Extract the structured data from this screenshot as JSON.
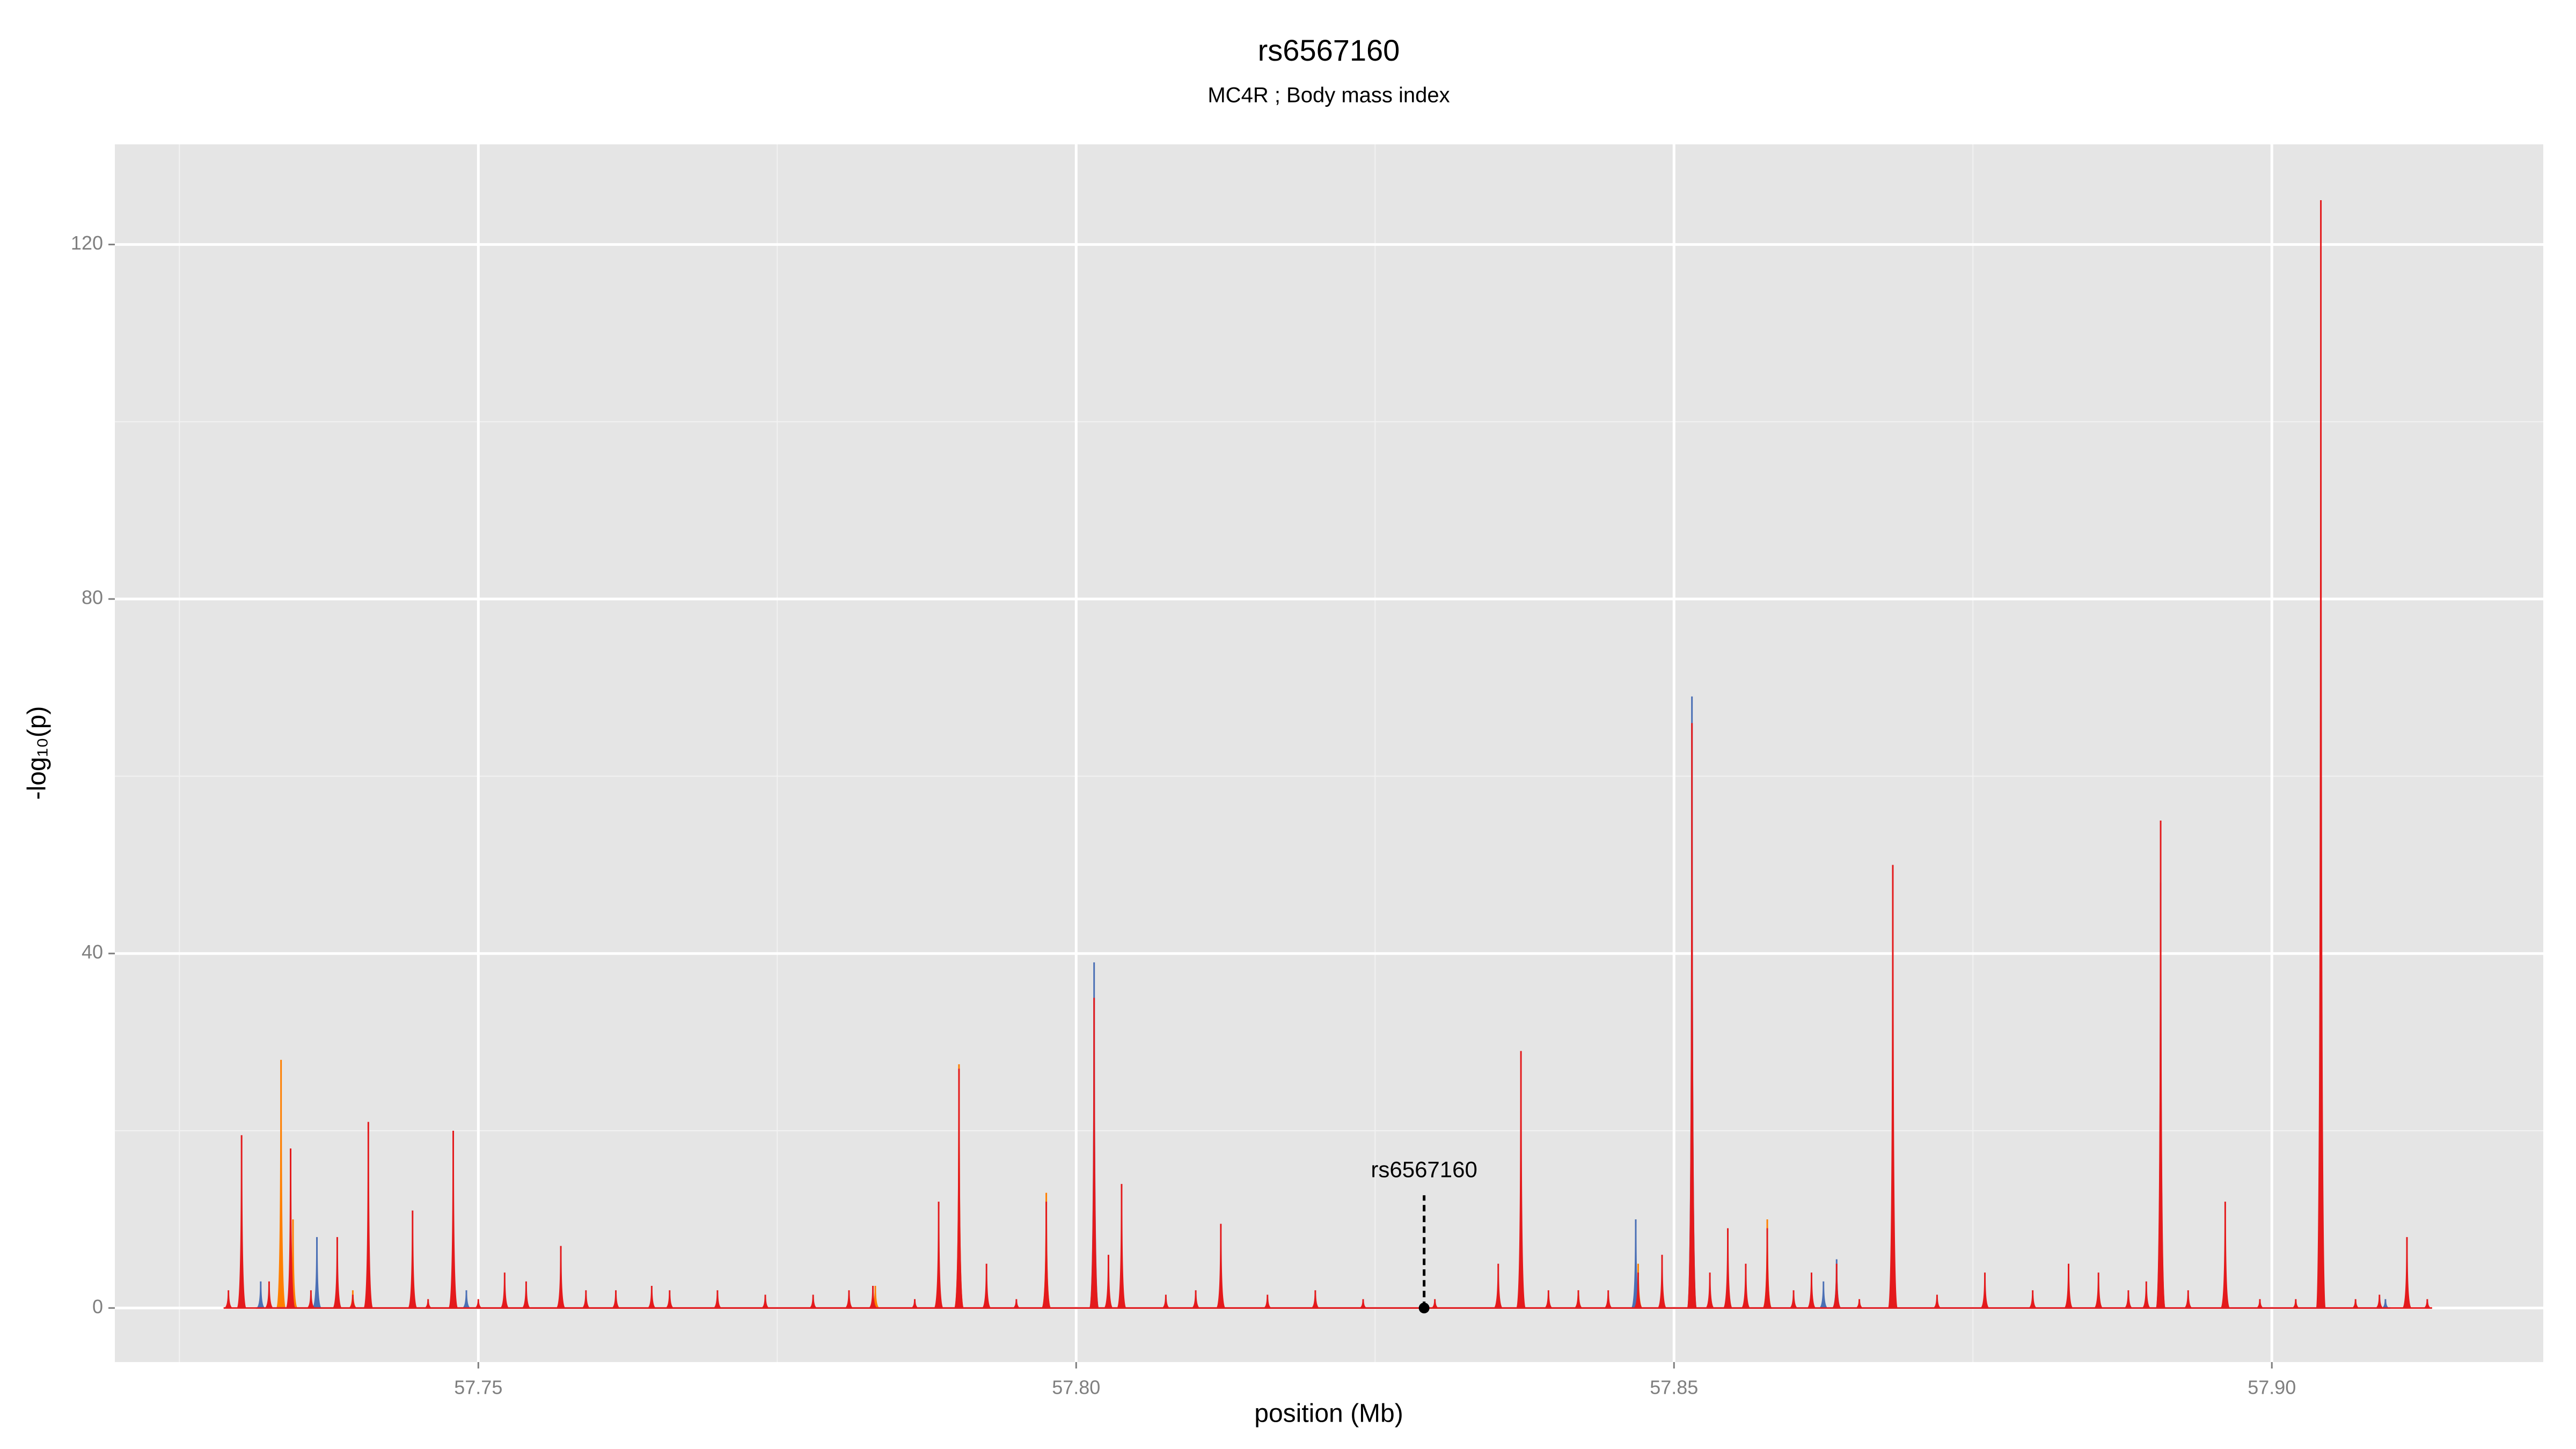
{
  "chart_data": {
    "type": "area",
    "title": "rs6567160",
    "subtitle": "MC4R ; Body mass index",
    "x_label": "position (Mb)",
    "y_label": "-log₁₀(p)",
    "xlim": [
      57.7196,
      57.9227
    ],
    "ylim": [
      -6.1,
      131.3
    ],
    "xticks": [
      57.75,
      {
        "value": 57.8,
        "label": "57.80"
      },
      57.85,
      {
        "value": 57.9,
        "label": "57.90"
      }
    ],
    "xminorticks": [
      57.725,
      57.775,
      57.825,
      57.875
    ],
    "yticks": [
      0,
      40,
      80,
      120
    ],
    "yminorticks": [
      20,
      60,
      100
    ],
    "grid": true,
    "series": [
      {
        "color": "#ff7f00",
        "x": [
          57.7335,
          57.7345,
          57.7395,
          57.7832,
          57.7902,
          57.7975,
          57.842,
          57.847,
          57.8578
        ],
        "values": [
          28,
          10,
          2,
          2.5,
          27.5,
          13,
          2,
          5,
          10
        ]
      },
      {
        "color": "#4a6fb5",
        "x": [
          57.7318,
          57.7365,
          57.749,
          57.8015,
          57.8468,
          57.8515,
          57.8625,
          57.8636,
          57.8907,
          57.9095
        ],
        "values": [
          3,
          8,
          2,
          39,
          10,
          69,
          3,
          5.5,
          48,
          1
        ]
      },
      {
        "color": "#e41a1c",
        "x": [
          57.7291,
          57.7302,
          57.7325,
          57.7343,
          57.736,
          57.7382,
          57.7395,
          57.7408,
          57.7445,
          57.7458,
          57.7479,
          57.75,
          57.7522,
          57.754,
          57.7569,
          57.759,
          57.7615,
          57.7645,
          57.766,
          57.77,
          57.774,
          57.778,
          57.781,
          57.783,
          57.7865,
          57.7885,
          57.7902,
          57.7925,
          57.795,
          57.7975,
          57.8015,
          57.8027,
          57.8038,
          57.8075,
          57.81,
          57.8121,
          57.816,
          57.82,
          57.824,
          57.83,
          57.8353,
          57.8372,
          57.8395,
          57.842,
          57.8445,
          57.847,
          57.849,
          57.8515,
          57.853,
          57.8545,
          57.856,
          57.8578,
          57.86,
          57.8615,
          57.8636,
          57.8655,
          57.8683,
          57.872,
          57.876,
          57.88,
          57.883,
          57.8855,
          57.888,
          57.8895,
          57.8907,
          57.893,
          57.8961,
          57.899,
          57.902,
          57.9041,
          57.907,
          57.909,
          57.9113,
          57.913
        ],
        "values": [
          2,
          19.5,
          3,
          18,
          2,
          8,
          1.5,
          21,
          11,
          1,
          20,
          1,
          4,
          3,
          7,
          2,
          2,
          2.5,
          2,
          2,
          1.5,
          1.5,
          2,
          2.5,
          1,
          12,
          27,
          5,
          1,
          12,
          35,
          6,
          14,
          1.5,
          2,
          9.5,
          1.5,
          2,
          1,
          1,
          5,
          29,
          2,
          2,
          2,
          4,
          6,
          66,
          4,
          9,
          5,
          9,
          2,
          4,
          5,
          1,
          50,
          1.5,
          4,
          2,
          5,
          4,
          2,
          3,
          55,
          2,
          12,
          1,
          1,
          125,
          1,
          1.5,
          8,
          1
        ]
      }
    ],
    "annotation": {
      "text": "rs6567160",
      "x": 57.8291,
      "y": 0
    }
  }
}
